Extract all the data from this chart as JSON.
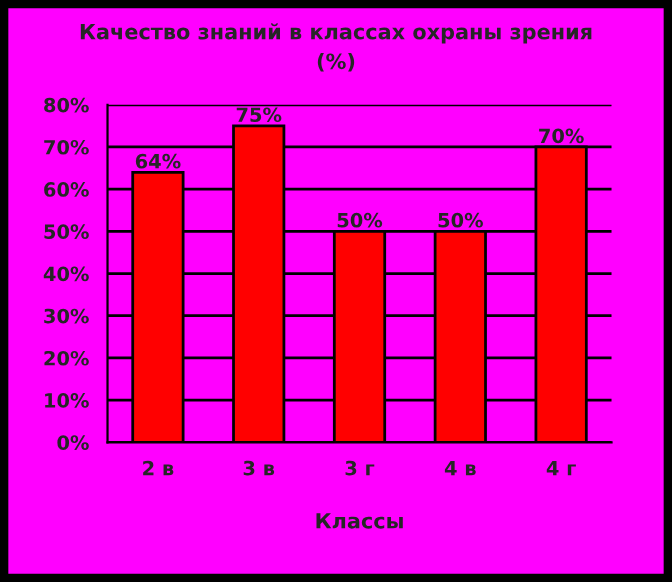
{
  "chart_data": {
    "type": "bar",
    "title": "Качество знаний в классах охраны зрения\n(%)",
    "xlabel": "Классы",
    "categories": [
      "2 в",
      "3 в",
      "3 г",
      "4 в",
      "4 г"
    ],
    "values": [
      64,
      75,
      50,
      50,
      70
    ],
    "color": "#ff0000",
    "value_labels": [
      "64%",
      "75%",
      "50%",
      "50%",
      "70%"
    ],
    "ylim": [
      0,
      80
    ],
    "yticks": [
      {
        "value": 0,
        "label": "0%"
      },
      {
        "value": 10,
        "label": "10%"
      },
      {
        "value": 20,
        "label": "20%"
      },
      {
        "value": 30,
        "label": "30%"
      },
      {
        "value": 40,
        "label": "40%"
      },
      {
        "value": 50,
        "label": "50%"
      },
      {
        "value": 60,
        "label": "60%"
      },
      {
        "value": 70,
        "label": "70%"
      },
      {
        "value": 80,
        "label": "80%"
      }
    ],
    "grid": "y",
    "legend": false
  }
}
